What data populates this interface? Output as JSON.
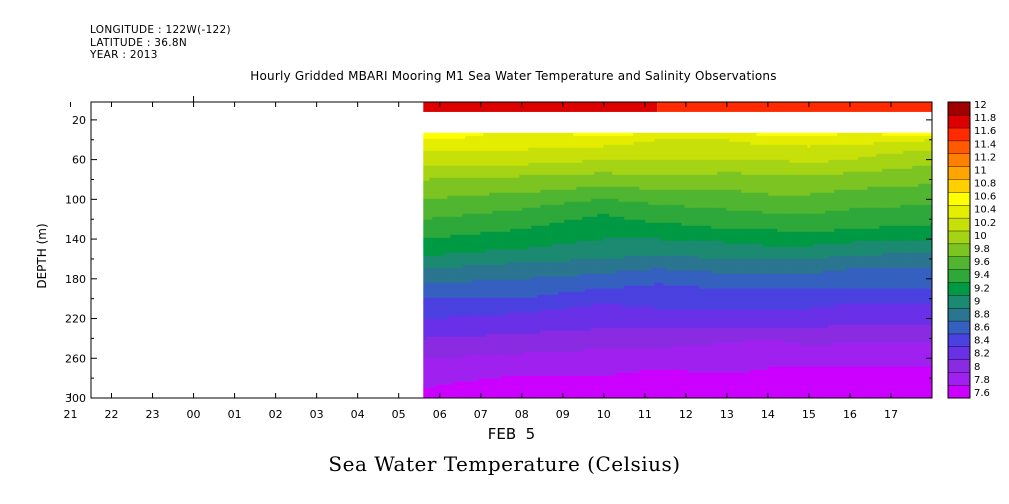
{
  "header": {
    "longitude": "LONGITUDE : 122W(-122)",
    "latitude": "LATITUDE : 36.8N",
    "year": "YEAR : 2013"
  },
  "chart_data": {
    "type": "heatmap",
    "title": "Hourly Gridded MBARI Mooring M1 Sea Water Temperature and Salinity Observations",
    "bottom_title": "Sea Water Temperature (Celsius)",
    "xlabel": "FEB  5",
    "ylabel": "DEPTH (m)",
    "x_ticks": [
      "21",
      "22",
      "23",
      "00",
      "01",
      "02",
      "03",
      "04",
      "05",
      "06",
      "07",
      "08",
      "09",
      "10",
      "11",
      "12",
      "13",
      "14",
      "15",
      "16",
      "17"
    ],
    "y_ticks": [
      20,
      60,
      100,
      140,
      180,
      220,
      260,
      300
    ],
    "ylim": [
      300,
      2
    ],
    "x_range_hours": [
      -3.5,
      17.0
    ],
    "data_start_hour": 4.6,
    "colorbar": {
      "levels": [
        7.6,
        7.8,
        8,
        8.2,
        8.4,
        8.6,
        8.8,
        9,
        9.2,
        9.4,
        9.6,
        9.8,
        10,
        10.2,
        10.4,
        10.6,
        10.8,
        11,
        11.2,
        11.4,
        11.6,
        11.8,
        12
      ],
      "labels": [
        "12",
        "11.8",
        "11.6",
        "11.4",
        "11.2",
        "11",
        "10.8",
        "10.6",
        "10.4",
        "10.2",
        "10",
        "9.8",
        "9.6",
        "9.4",
        "9.2",
        "9",
        "8.8",
        "8.6",
        "8.4",
        "8.2",
        "8",
        "7.8",
        "7.6"
      ],
      "colors": [
        "#cc00ff",
        "#a020f0",
        "#8a2be2",
        "#6a30e8",
        "#4b40e0",
        "#3560c0",
        "#2a7590",
        "#1b8a70",
        "#009944",
        "#2fa83a",
        "#50b530",
        "#7cc422",
        "#a4d414",
        "#c8e00a",
        "#e4ec00",
        "#ffff00",
        "#ffd000",
        "#ffa500",
        "#ff7f00",
        "#ff5a00",
        "#ff2a00",
        "#dd0000",
        "#a00000"
      ]
    },
    "shallow_band": {
      "depth_from": 2,
      "depth_to": 12,
      "value_early": 11.9,
      "value_late": 11.7,
      "split_hour": 10.3
    },
    "data_gap": {
      "depth_from": 12,
      "depth_to": 33
    },
    "profile_depths": [
      33,
      40,
      50,
      60,
      70,
      80,
      90,
      100,
      110,
      120,
      130,
      140,
      150,
      160,
      170,
      180,
      190,
      200,
      210,
      220,
      230,
      240,
      250,
      260,
      270,
      280,
      290,
      300
    ],
    "profile_hours": [
      4.6,
      7,
      9,
      10.3,
      12,
      13,
      14,
      15,
      17
    ],
    "profile_values": [
      [
        10.8,
        10.5,
        10.7,
        10.6,
        10.5,
        10.7,
        10.7,
        10.6,
        10.7
      ],
      [
        10.6,
        10.5,
        10.5,
        10.4,
        10.4,
        10.5,
        10.5,
        10.5,
        10.4
      ],
      [
        10.4,
        10.4,
        10.35,
        10.3,
        10.3,
        10.3,
        10.35,
        10.3,
        10.2
      ],
      [
        10.3,
        10.3,
        10.2,
        10.2,
        10.2,
        10.2,
        10.25,
        10.2,
        10.05
      ],
      [
        10.15,
        10.1,
        10.05,
        10.1,
        10.05,
        10.05,
        10.1,
        10.05,
        9.95
      ],
      [
        10.0,
        9.95,
        9.9,
        9.95,
        9.9,
        9.95,
        9.95,
        9.9,
        9.85
      ],
      [
        9.9,
        9.85,
        9.75,
        9.8,
        9.8,
        9.85,
        9.85,
        9.8,
        9.75
      ],
      [
        9.8,
        9.7,
        9.6,
        9.65,
        9.7,
        9.75,
        9.75,
        9.7,
        9.65
      ],
      [
        9.7,
        9.6,
        9.45,
        9.55,
        9.6,
        9.65,
        9.65,
        9.6,
        9.55
      ],
      [
        9.6,
        9.5,
        9.35,
        9.45,
        9.5,
        9.5,
        9.55,
        9.5,
        9.45
      ],
      [
        9.5,
        9.4,
        9.25,
        9.3,
        9.4,
        9.4,
        9.45,
        9.4,
        9.35
      ],
      [
        9.4,
        9.3,
        9.2,
        9.2,
        9.25,
        9.3,
        9.3,
        9.25,
        9.2
      ],
      [
        9.3,
        9.2,
        9.1,
        9.1,
        9.1,
        9.15,
        9.15,
        9.1,
        9.05
      ],
      [
        9.15,
        9.05,
        9.0,
        8.95,
        9.0,
        9.0,
        9.0,
        8.95,
        8.9
      ],
      [
        9.0,
        8.9,
        8.85,
        8.8,
        8.85,
        8.85,
        8.85,
        8.8,
        8.8
      ],
      [
        8.85,
        8.8,
        8.75,
        8.65,
        8.75,
        8.75,
        8.75,
        8.7,
        8.7
      ],
      [
        8.75,
        8.7,
        8.6,
        8.55,
        8.6,
        8.6,
        8.6,
        8.6,
        8.6
      ],
      [
        8.6,
        8.6,
        8.45,
        8.5,
        8.5,
        8.5,
        8.5,
        8.45,
        8.45
      ],
      [
        8.5,
        8.45,
        8.35,
        8.4,
        8.4,
        8.4,
        8.4,
        8.35,
        8.35
      ],
      [
        8.4,
        8.35,
        8.25,
        8.3,
        8.3,
        8.3,
        8.3,
        8.25,
        8.25
      ],
      [
        8.3,
        8.25,
        8.2,
        8.2,
        8.2,
        8.2,
        8.2,
        8.15,
        8.15
      ],
      [
        8.2,
        8.15,
        8.1,
        8.1,
        8.05,
        8.0,
        8.1,
        8.05,
        8.05
      ],
      [
        8.1,
        8.05,
        8.0,
        8.0,
        7.95,
        7.9,
        7.95,
        7.95,
        7.95
      ],
      [
        8.0,
        7.95,
        7.95,
        7.9,
        7.9,
        7.85,
        7.9,
        7.85,
        7.85
      ],
      [
        7.9,
        7.85,
        7.85,
        7.8,
        7.85,
        7.8,
        7.8,
        7.8,
        7.8
      ],
      [
        7.85,
        7.78,
        7.78,
        7.75,
        7.75,
        7.75,
        7.72,
        7.7,
        7.7
      ],
      [
        7.8,
        7.72,
        7.7,
        7.7,
        7.7,
        7.65,
        7.68,
        7.65,
        7.65
      ],
      [
        7.78,
        7.7,
        7.65,
        7.65,
        7.62,
        7.6,
        7.62,
        7.6,
        7.6
      ]
    ]
  }
}
